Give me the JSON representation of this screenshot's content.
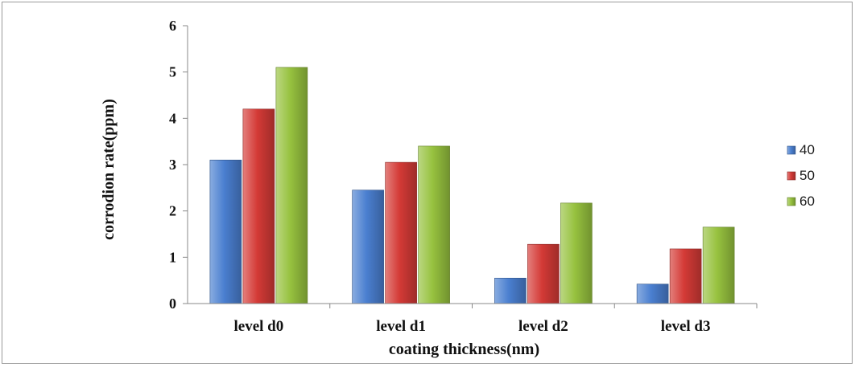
{
  "chart_data": {
    "type": "bar",
    "categories": [
      "level d0",
      "level d1",
      "level d2",
      "level d3"
    ],
    "series": [
      {
        "name": "40",
        "values": [
          3.1,
          2.45,
          0.55,
          0.42
        ],
        "color": "#4a7fd0"
      },
      {
        "name": "50",
        "values": [
          4.2,
          3.05,
          1.28,
          1.18
        ],
        "color": "#d43a36"
      },
      {
        "name": "60",
        "values": [
          5.1,
          3.4,
          2.17,
          1.65
        ],
        "color": "#97c23f"
      }
    ],
    "xlabel": "coating thickness(nm)",
    "ylabel": "corrodion rate(ppm)",
    "ylim": [
      0,
      6
    ],
    "yticks": [
      "0",
      "1",
      "2",
      "3",
      "4",
      "5",
      "6"
    ],
    "grid": false,
    "legend_position": "right"
  }
}
